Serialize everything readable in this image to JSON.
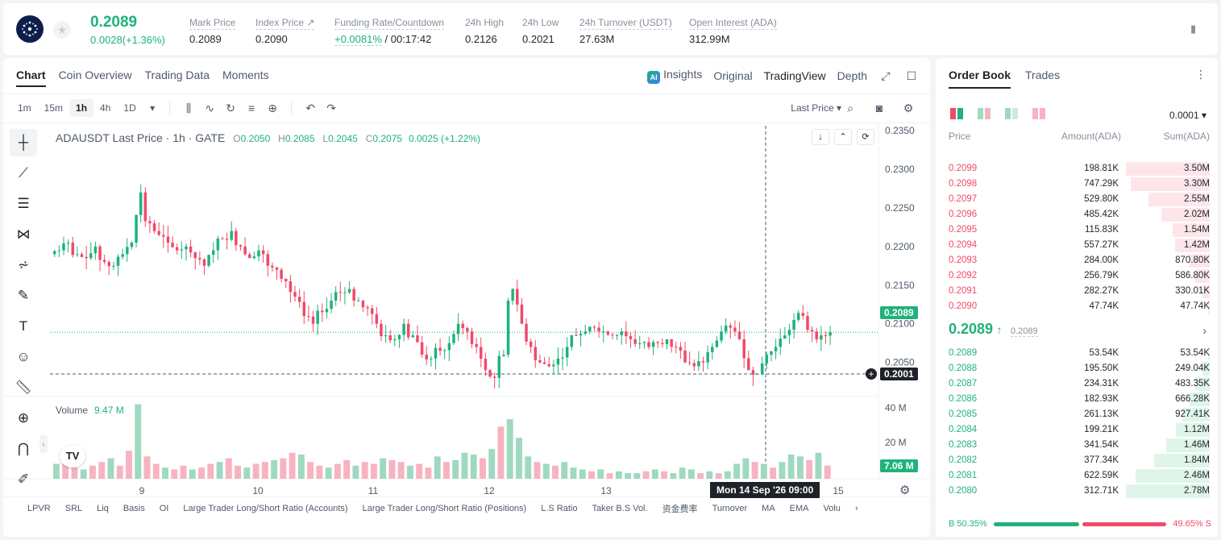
{
  "header": {
    "last_price": "0.2089",
    "change": "0.0028(+1.36%)",
    "stats": [
      {
        "label": "Mark Price",
        "value": "0.2089"
      },
      {
        "label": "Index Price ↗",
        "value": "0.2090"
      },
      {
        "label": "Funding Rate/Countdown",
        "value_green": "+0.0081%",
        "value_rest": " / 00:17:42"
      },
      {
        "label": "24h High",
        "value": "0.2126"
      },
      {
        "label": "24h Low",
        "value": "0.2021"
      },
      {
        "label": "24h Turnover (USDT)",
        "value": "27.63M"
      },
      {
        "label": "Open Interest (ADA)",
        "value": "312.99M"
      }
    ]
  },
  "chart_panel": {
    "tabs": [
      "Chart",
      "Coin Overview",
      "Trading Data",
      "Moments"
    ],
    "views": {
      "ai_badge": "AI",
      "insights": "Insights",
      "original": "Original",
      "tradingview": "TradingView",
      "depth": "Depth"
    },
    "timeframes": [
      "1m",
      "15m",
      "1h",
      "4h",
      "1D"
    ],
    "last_price_select": "Last Price ▾",
    "legend": {
      "symbol": "ADAUSDT Last Price · 1h · GATE",
      "o": "0.2050",
      "h": "0.2085",
      "l": "0.2045",
      "c": "0.2075",
      "chg": "0.0025 (+1.22%)"
    },
    "volume_legend": {
      "label": "Volume",
      "value": "9.47 M"
    },
    "current_price_tag": "0.2089",
    "crosshair_price_tag": "0.2001",
    "volume_tag": "7.06 M",
    "crosshair_date": "Mon 14 Sep '26   09:00",
    "tv_logo": "TV",
    "indicators": [
      "LPVR",
      "SRL",
      "Liq",
      "Basis",
      "OI",
      "Large Trader Long/Short Ratio (Accounts)",
      "Large Trader Long/Short Ratio (Positions)",
      "L.S Ratio",
      "Taker B.S Vol.",
      "资金费率",
      "Turnover",
      "MA",
      "EMA",
      "Volu"
    ]
  },
  "chart_data": {
    "type": "candlestick",
    "title": "ADAUSDT Last Price · 1h · GATE",
    "y_ticks": [
      "0.2350",
      "0.2300",
      "0.2250",
      "0.2200",
      "0.2150",
      "0.2100",
      "0.2050"
    ],
    "y_range": [
      0.2001,
      0.235
    ],
    "x_ticks": [
      "9",
      "10",
      "11",
      "12",
      "13",
      "15"
    ],
    "volume_ticks": [
      "40 M",
      "20 M"
    ],
    "close_path": [
      0.2195,
      0.2205,
      0.219,
      0.2185,
      0.22,
      0.218,
      0.2175,
      0.219,
      0.2205,
      0.227,
      0.223,
      0.2215,
      0.2205,
      0.2195,
      0.22,
      0.2185,
      0.2175,
      0.2195,
      0.221,
      0.222,
      0.22,
      0.2185,
      0.2195,
      0.2175,
      0.217,
      0.2155,
      0.2135,
      0.211,
      0.21,
      0.2115,
      0.213,
      0.214,
      0.2145,
      0.213,
      0.212,
      0.21,
      0.2085,
      0.208,
      0.21,
      0.2085,
      0.206,
      0.2055,
      0.2065,
      0.2075,
      0.21,
      0.209,
      0.207,
      0.204,
      0.203,
      0.206,
      0.2145,
      0.21,
      0.207,
      0.205,
      0.2045,
      0.2055,
      0.207,
      0.2085,
      0.209,
      0.2095,
      0.209,
      0.2085,
      0.209,
      0.208,
      0.2075,
      0.207,
      0.2075,
      0.208,
      0.207,
      0.205,
      0.2045,
      0.205,
      0.207,
      0.209,
      0.2095,
      0.208,
      0.204,
      0.2035,
      0.206,
      0.207,
      0.2085,
      0.2105,
      0.211,
      0.209,
      0.2085,
      0.2089
    ],
    "volume_values": [
      8,
      12,
      6,
      5,
      7,
      9,
      11,
      7,
      15,
      40,
      12,
      8,
      6,
      5,
      7,
      5,
      6,
      8,
      9,
      11,
      7,
      6,
      8,
      9,
      10,
      11,
      14,
      13,
      9,
      7,
      6,
      8,
      10,
      7,
      9,
      8,
      11,
      10,
      9,
      7,
      8,
      6,
      12,
      9,
      10,
      14,
      13,
      11,
      16,
      28,
      32,
      22,
      12,
      9,
      8,
      7,
      9,
      6,
      5,
      4,
      5,
      3,
      4,
      3,
      3,
      4,
      5,
      4,
      3,
      6,
      5,
      3,
      4,
      3,
      4,
      8,
      11,
      9,
      8,
      6,
      9,
      13,
      12,
      10,
      14,
      7.06
    ]
  },
  "order_book": {
    "tabs": [
      "Order Book",
      "Trades"
    ],
    "precision": "0.0001 ▾",
    "headers": {
      "price": "Price",
      "amount": "Amount(ADA)",
      "sum": "Sum(ADA)"
    },
    "asks": [
      {
        "price": "0.2099",
        "amount": "198.81K",
        "sum": "3.50M",
        "depth": 1.0
      },
      {
        "price": "0.2098",
        "amount": "747.29K",
        "sum": "3.30M",
        "depth": 0.94
      },
      {
        "price": "0.2097",
        "amount": "529.80K",
        "sum": "2.55M",
        "depth": 0.73
      },
      {
        "price": "0.2096",
        "amount": "485.42K",
        "sum": "2.02M",
        "depth": 0.58
      },
      {
        "price": "0.2095",
        "amount": "115.83K",
        "sum": "1.54M",
        "depth": 0.44
      },
      {
        "price": "0.2094",
        "amount": "557.27K",
        "sum": "1.42M",
        "depth": 0.41
      },
      {
        "price": "0.2093",
        "amount": "284.00K",
        "sum": "870.80K",
        "depth": 0.25
      },
      {
        "price": "0.2092",
        "amount": "256.79K",
        "sum": "586.80K",
        "depth": 0.17
      },
      {
        "price": "0.2091",
        "amount": "282.27K",
        "sum": "330.01K",
        "depth": 0.09
      },
      {
        "price": "0.2090",
        "amount": "47.74K",
        "sum": "47.74K",
        "depth": 0.014
      }
    ],
    "mid": {
      "price": "0.2089",
      "arrow": "↑",
      "mark": "0.2089"
    },
    "bids": [
      {
        "price": "0.2089",
        "amount": "53.54K",
        "sum": "53.54K",
        "depth": 0.019
      },
      {
        "price": "0.2088",
        "amount": "195.50K",
        "sum": "249.04K",
        "depth": 0.09
      },
      {
        "price": "0.2087",
        "amount": "234.31K",
        "sum": "483.35K",
        "depth": 0.17
      },
      {
        "price": "0.2086",
        "amount": "182.93K",
        "sum": "666.28K",
        "depth": 0.24
      },
      {
        "price": "0.2085",
        "amount": "261.13K",
        "sum": "927.41K",
        "depth": 0.33
      },
      {
        "price": "0.2084",
        "amount": "199.21K",
        "sum": "1.12M",
        "depth": 0.4
      },
      {
        "price": "0.2083",
        "amount": "341.54K",
        "sum": "1.46M",
        "depth": 0.52
      },
      {
        "price": "0.2082",
        "amount": "377.34K",
        "sum": "1.84M",
        "depth": 0.66
      },
      {
        "price": "0.2081",
        "amount": "622.59K",
        "sum": "2.46M",
        "depth": 0.88
      },
      {
        "price": "0.2080",
        "amount": "312.71K",
        "sum": "2.78M",
        "depth": 1.0
      }
    ],
    "ratio": {
      "buy_label": "B 50.35%",
      "sell_label": "49.65% S"
    },
    "colors": {
      "green": "#1fb27a",
      "red": "#f04a68"
    }
  }
}
